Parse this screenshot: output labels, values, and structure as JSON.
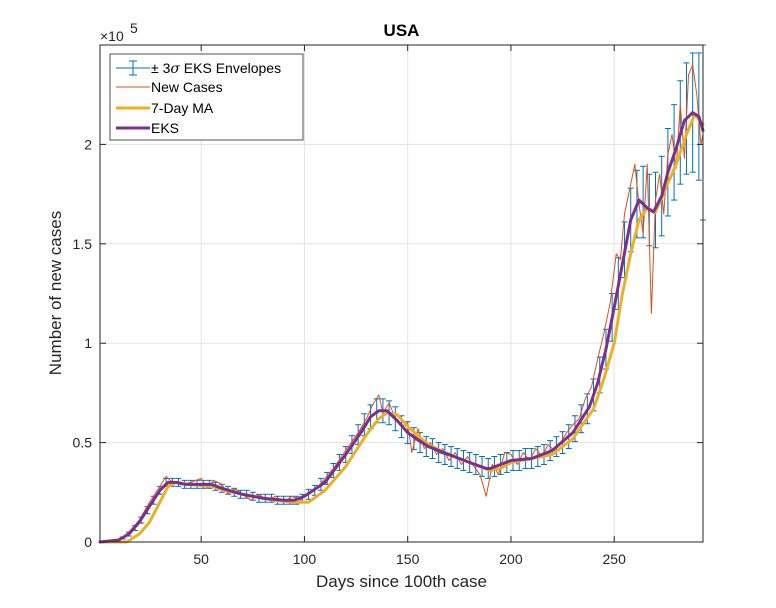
{
  "chart_data": {
    "type": "line",
    "title": "USA",
    "xlabel": "Days since 100th case",
    "ylabel": "Number of new cases",
    "y_exponent_label": {
      "base": "×10",
      "power": "5"
    },
    "xlim": [
      1,
      293
    ],
    "ylim": [
      0,
      2.5
    ],
    "y_scale_factor": 100000,
    "x_ticks": [
      50,
      100,
      150,
      200,
      250
    ],
    "x_tick_labels": [
      "50",
      "100",
      "150",
      "200",
      "250"
    ],
    "y_ticks": [
      0,
      0.5,
      1,
      1.5,
      2
    ],
    "y_tick_labels": [
      "0",
      "0.5",
      "1",
      "1.5",
      "2"
    ],
    "grid": true,
    "legend_position": "top-left",
    "colors": {
      "envelope": "#0072BD",
      "new_cases": "#D95319",
      "ma7": "#EDB120",
      "eks": "#7E2F8E"
    },
    "legend": [
      {
        "key": "envelope",
        "label_pre": "± 3",
        "label_sigma": "σ",
        "label_post": " EKS Envelopes"
      },
      {
        "key": "new_cases",
        "label": "New Cases"
      },
      {
        "key": "ma7",
        "label": "7-Day MA"
      },
      {
        "key": "eks",
        "label": "EKS"
      }
    ],
    "series": [
      {
        "name": "EKS",
        "key": "eks",
        "points": [
          [
            1,
            0
          ],
          [
            10,
            0.01
          ],
          [
            15,
            0.04
          ],
          [
            20,
            0.1
          ],
          [
            25,
            0.18
          ],
          [
            30,
            0.26
          ],
          [
            34,
            0.3
          ],
          [
            38,
            0.3
          ],
          [
            42,
            0.29
          ],
          [
            50,
            0.29
          ],
          [
            55,
            0.29
          ],
          [
            60,
            0.27
          ],
          [
            70,
            0.24
          ],
          [
            80,
            0.22
          ],
          [
            90,
            0.21
          ],
          [
            95,
            0.21
          ],
          [
            100,
            0.23
          ],
          [
            110,
            0.3
          ],
          [
            120,
            0.44
          ],
          [
            128,
            0.56
          ],
          [
            132,
            0.63
          ],
          [
            136,
            0.66
          ],
          [
            140,
            0.66
          ],
          [
            145,
            0.61
          ],
          [
            150,
            0.55
          ],
          [
            160,
            0.48
          ],
          [
            170,
            0.44
          ],
          [
            180,
            0.4
          ],
          [
            188,
            0.37
          ],
          [
            190,
            0.37
          ],
          [
            195,
            0.39
          ],
          [
            200,
            0.41
          ],
          [
            210,
            0.42
          ],
          [
            220,
            0.46
          ],
          [
            230,
            0.55
          ],
          [
            238,
            0.68
          ],
          [
            242,
            0.8
          ],
          [
            246,
            0.97
          ],
          [
            250,
            1.18
          ],
          [
            254,
            1.4
          ],
          [
            258,
            1.62
          ],
          [
            262,
            1.72
          ],
          [
            266,
            1.68
          ],
          [
            269,
            1.66
          ],
          [
            273,
            1.74
          ],
          [
            276,
            1.86
          ],
          [
            280,
            1.98
          ],
          [
            284,
            2.12
          ],
          [
            288,
            2.16
          ],
          [
            291,
            2.14
          ],
          [
            293,
            2.07
          ]
        ]
      },
      {
        "name": "7-Day MA",
        "key": "ma7",
        "points": [
          [
            1,
            0
          ],
          [
            14,
            0
          ],
          [
            20,
            0.04
          ],
          [
            25,
            0.1
          ],
          [
            30,
            0.2
          ],
          [
            34,
            0.28
          ],
          [
            38,
            0.3
          ],
          [
            44,
            0.29
          ],
          [
            55,
            0.28
          ],
          [
            65,
            0.25
          ],
          [
            75,
            0.23
          ],
          [
            85,
            0.21
          ],
          [
            95,
            0.2
          ],
          [
            102,
            0.2
          ],
          [
            110,
            0.26
          ],
          [
            120,
            0.38
          ],
          [
            130,
            0.54
          ],
          [
            136,
            0.62
          ],
          [
            140,
            0.65
          ],
          [
            145,
            0.64
          ],
          [
            150,
            0.58
          ],
          [
            160,
            0.49
          ],
          [
            170,
            0.44
          ],
          [
            180,
            0.4
          ],
          [
            190,
            0.36
          ],
          [
            195,
            0.37
          ],
          [
            200,
            0.4
          ],
          [
            210,
            0.42
          ],
          [
            220,
            0.44
          ],
          [
            230,
            0.52
          ],
          [
            240,
            0.67
          ],
          [
            245,
            0.82
          ],
          [
            250,
            1.0
          ],
          [
            254,
            1.25
          ],
          [
            258,
            1.45
          ],
          [
            262,
            1.62
          ],
          [
            266,
            1.68
          ],
          [
            270,
            1.66
          ],
          [
            275,
            1.78
          ],
          [
            280,
            1.9
          ],
          [
            285,
            2.05
          ],
          [
            289,
            2.15
          ],
          [
            293,
            2.1
          ]
        ]
      },
      {
        "name": "New Cases",
        "key": "new_cases",
        "points": [
          [
            1,
            0
          ],
          [
            10,
            0.01
          ],
          [
            15,
            0.05
          ],
          [
            20,
            0.11
          ],
          [
            25,
            0.2
          ],
          [
            30,
            0.28
          ],
          [
            33,
            0.33
          ],
          [
            36,
            0.3
          ],
          [
            40,
            0.29
          ],
          [
            45,
            0.3
          ],
          [
            50,
            0.32
          ],
          [
            53,
            0.27
          ],
          [
            56,
            0.31
          ],
          [
            60,
            0.29
          ],
          [
            63,
            0.24
          ],
          [
            66,
            0.27
          ],
          [
            70,
            0.24
          ],
          [
            74,
            0.21
          ],
          [
            78,
            0.24
          ],
          [
            82,
            0.21
          ],
          [
            86,
            0.23
          ],
          [
            90,
            0.2
          ],
          [
            94,
            0.23
          ],
          [
            98,
            0.21
          ],
          [
            102,
            0.25
          ],
          [
            106,
            0.27
          ],
          [
            110,
            0.32
          ],
          [
            114,
            0.37
          ],
          [
            118,
            0.43
          ],
          [
            122,
            0.49
          ],
          [
            126,
            0.55
          ],
          [
            130,
            0.62
          ],
          [
            133,
            0.69
          ],
          [
            136,
            0.74
          ],
          [
            138,
            0.65
          ],
          [
            141,
            0.7
          ],
          [
            144,
            0.62
          ],
          [
            147,
            0.58
          ],
          [
            150,
            0.6
          ],
          [
            152,
            0.45
          ],
          [
            155,
            0.57
          ],
          [
            158,
            0.47
          ],
          [
            161,
            0.5
          ],
          [
            164,
            0.44
          ],
          [
            167,
            0.47
          ],
          [
            170,
            0.41
          ],
          [
            173,
            0.45
          ],
          [
            176,
            0.39
          ],
          [
            179,
            0.43
          ],
          [
            182,
            0.38
          ],
          [
            185,
            0.34
          ],
          [
            188,
            0.23
          ],
          [
            191,
            0.39
          ],
          [
            194,
            0.34
          ],
          [
            197,
            0.45
          ],
          [
            200,
            0.44
          ],
          [
            203,
            0.39
          ],
          [
            206,
            0.45
          ],
          [
            209,
            0.41
          ],
          [
            212,
            0.47
          ],
          [
            215,
            0.43
          ],
          [
            218,
            0.49
          ],
          [
            221,
            0.46
          ],
          [
            224,
            0.5
          ],
          [
            227,
            0.55
          ],
          [
            230,
            0.59
          ],
          [
            233,
            0.62
          ],
          [
            236,
            0.72
          ],
          [
            239,
            0.78
          ],
          [
            242,
            0.92
          ],
          [
            245,
            1.05
          ],
          [
            248,
            1.2
          ],
          [
            251,
            1.45
          ],
          [
            253,
            1.42
          ],
          [
            255,
            1.65
          ],
          [
            258,
            1.8
          ],
          [
            260,
            1.9
          ],
          [
            262,
            1.7
          ],
          [
            264,
            1.55
          ],
          [
            266,
            1.9
          ],
          [
            268,
            1.15
          ],
          [
            270,
            1.72
          ],
          [
            272,
            1.85
          ],
          [
            274,
            1.65
          ],
          [
            276,
            1.95
          ],
          [
            278,
            2.05
          ],
          [
            280,
            1.88
          ],
          [
            282,
            2.2
          ],
          [
            284,
            1.93
          ],
          [
            286,
            2.35
          ],
          [
            288,
            2.4
          ],
          [
            290,
            2.25
          ],
          [
            292,
            2.0
          ],
          [
            293,
            2.05
          ]
        ]
      }
    ],
    "envelope": {
      "name": "± 3σ EKS Envelopes",
      "key": "envelope",
      "bars": [
        [
          3,
          0,
          0.002
        ],
        [
          6,
          0,
          0.003
        ],
        [
          9,
          0.005,
          0.005
        ],
        [
          12,
          0.02,
          0.005
        ],
        [
          15,
          0.04,
          0.01
        ],
        [
          18,
          0.07,
          0.012
        ],
        [
          21,
          0.11,
          0.015
        ],
        [
          24,
          0.16,
          0.018
        ],
        [
          27,
          0.21,
          0.02
        ],
        [
          30,
          0.26,
          0.02
        ],
        [
          33,
          0.3,
          0.02
        ],
        [
          36,
          0.3,
          0.02
        ],
        [
          39,
          0.3,
          0.02
        ],
        [
          42,
          0.29,
          0.02
        ],
        [
          45,
          0.29,
          0.02
        ],
        [
          48,
          0.29,
          0.02
        ],
        [
          51,
          0.29,
          0.02
        ],
        [
          54,
          0.29,
          0.02
        ],
        [
          57,
          0.28,
          0.02
        ],
        [
          60,
          0.27,
          0.02
        ],
        [
          63,
          0.26,
          0.02
        ],
        [
          66,
          0.25,
          0.02
        ],
        [
          69,
          0.24,
          0.02
        ],
        [
          72,
          0.24,
          0.02
        ],
        [
          75,
          0.23,
          0.02
        ],
        [
          78,
          0.22,
          0.02
        ],
        [
          81,
          0.22,
          0.02
        ],
        [
          84,
          0.22,
          0.02
        ],
        [
          87,
          0.21,
          0.02
        ],
        [
          90,
          0.21,
          0.02
        ],
        [
          93,
          0.21,
          0.02
        ],
        [
          96,
          0.21,
          0.02
        ],
        [
          99,
          0.22,
          0.02
        ],
        [
          102,
          0.24,
          0.025
        ],
        [
          105,
          0.26,
          0.025
        ],
        [
          108,
          0.29,
          0.03
        ],
        [
          111,
          0.32,
          0.03
        ],
        [
          114,
          0.36,
          0.035
        ],
        [
          117,
          0.4,
          0.04
        ],
        [
          120,
          0.44,
          0.04
        ],
        [
          123,
          0.49,
          0.045
        ],
        [
          126,
          0.54,
          0.05
        ],
        [
          129,
          0.59,
          0.055
        ],
        [
          132,
          0.63,
          0.06
        ],
        [
          135,
          0.66,
          0.06
        ],
        [
          138,
          0.66,
          0.06
        ],
        [
          141,
          0.65,
          0.06
        ],
        [
          144,
          0.62,
          0.06
        ],
        [
          147,
          0.58,
          0.055
        ],
        [
          150,
          0.55,
          0.055
        ],
        [
          153,
          0.52,
          0.055
        ],
        [
          156,
          0.5,
          0.05
        ],
        [
          159,
          0.48,
          0.05
        ],
        [
          162,
          0.47,
          0.05
        ],
        [
          165,
          0.45,
          0.05
        ],
        [
          168,
          0.44,
          0.05
        ],
        [
          171,
          0.43,
          0.05
        ],
        [
          174,
          0.42,
          0.05
        ],
        [
          177,
          0.41,
          0.05
        ],
        [
          180,
          0.4,
          0.05
        ],
        [
          183,
          0.39,
          0.05
        ],
        [
          186,
          0.38,
          0.05
        ],
        [
          189,
          0.37,
          0.05
        ],
        [
          192,
          0.38,
          0.05
        ],
        [
          195,
          0.39,
          0.05
        ],
        [
          198,
          0.4,
          0.05
        ],
        [
          201,
          0.41,
          0.05
        ],
        [
          204,
          0.41,
          0.05
        ],
        [
          207,
          0.42,
          0.05
        ],
        [
          210,
          0.42,
          0.05
        ],
        [
          213,
          0.43,
          0.05
        ],
        [
          216,
          0.44,
          0.05
        ],
        [
          219,
          0.46,
          0.05
        ],
        [
          222,
          0.48,
          0.05
        ],
        [
          225,
          0.5,
          0.055
        ],
        [
          228,
          0.53,
          0.06
        ],
        [
          231,
          0.57,
          0.065
        ],
        [
          234,
          0.62,
          0.07
        ],
        [
          237,
          0.67,
          0.075
        ],
        [
          240,
          0.74,
          0.08
        ],
        [
          243,
          0.84,
          0.09
        ],
        [
          246,
          0.97,
          0.1
        ],
        [
          249,
          1.13,
          0.12
        ],
        [
          252,
          1.3,
          0.13
        ],
        [
          255,
          1.47,
          0.14
        ],
        [
          258,
          1.62,
          0.16
        ],
        [
          261,
          1.7,
          0.17
        ],
        [
          264,
          1.71,
          0.18
        ],
        [
          267,
          1.67,
          0.18
        ],
        [
          270,
          1.67,
          0.19
        ],
        [
          273,
          1.74,
          0.2
        ],
        [
          276,
          1.86,
          0.22
        ],
        [
          279,
          1.96,
          0.24
        ],
        [
          282,
          2.06,
          0.26
        ],
        [
          285,
          2.13,
          0.28
        ],
        [
          288,
          2.16,
          0.3
        ],
        [
          291,
          2.14,
          0.32
        ],
        [
          293,
          2.07,
          0.45
        ]
      ]
    }
  }
}
